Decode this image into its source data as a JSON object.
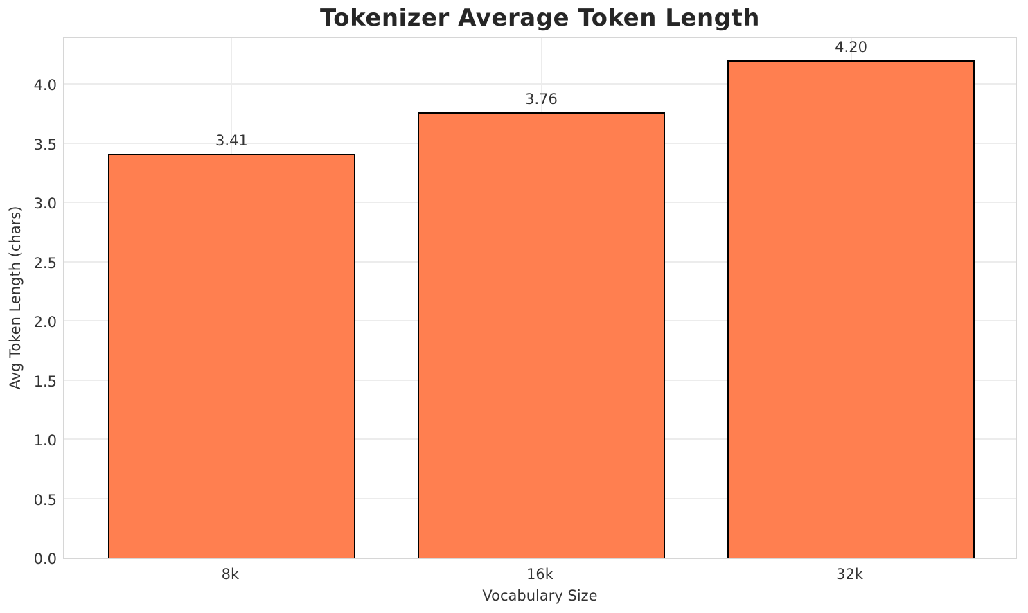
{
  "chart_data": {
    "type": "bar",
    "title": "Tokenizer Average Token Length",
    "xlabel": "Vocabulary Size",
    "ylabel": "Avg Token Length (chars)",
    "categories": [
      "8k",
      "16k",
      "32k"
    ],
    "values": [
      3.41,
      3.76,
      4.2
    ],
    "value_labels": [
      "3.41",
      "3.76",
      "4.20"
    ],
    "yticks": [
      0.0,
      0.5,
      1.0,
      1.5,
      2.0,
      2.5,
      3.0,
      3.5,
      4.0
    ],
    "ytick_labels": [
      "0.0",
      "0.5",
      "1.0",
      "1.5",
      "2.0",
      "2.5",
      "3.0",
      "3.5",
      "4.0"
    ],
    "ylim": [
      0,
      4.41
    ],
    "grid": true,
    "legend": "none",
    "bar_color": "#FF7F50",
    "bar_edge_color": "#000000"
  },
  "colors": {
    "background": "#ffffff",
    "title_text": "#262626",
    "tick_text": "#333333",
    "gridline": "#ececec",
    "spine": "#d6d6d6"
  }
}
